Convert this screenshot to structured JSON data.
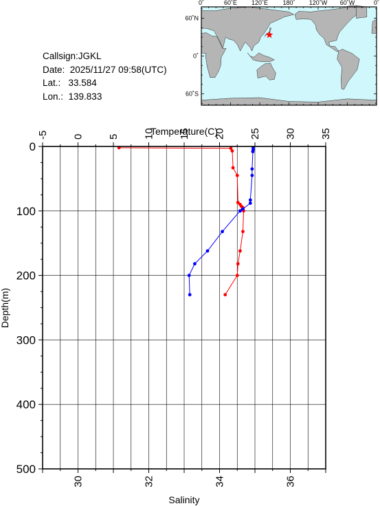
{
  "info": {
    "callsign": "Callsign:JGKL",
    "date": "Date:  2025/11/27 09:58(UTC)",
    "lat": "Lat.:   33.584",
    "lon": "Lon.:  139.833"
  },
  "map": {
    "lon_labels": [
      "0˚",
      "60˚E",
      "120˚E",
      "180˚",
      "120˚W",
      "60˚W",
      "0˚"
    ],
    "lat_labels": [
      "60˚N",
      "0˚",
      "60˚S"
    ],
    "station": {
      "lat": 33.584,
      "lon": 139.833
    },
    "ocean_color": "#d0f8fc",
    "land_color": "#b5b5b5",
    "marker_color": "#ff0000"
  },
  "chart_data": {
    "type": "line",
    "xlabel": "Temperature(C)",
    "x2label": "Salinity",
    "ylabel": "Depth(m)",
    "temp_range": [
      -5,
      35
    ],
    "temp_ticks": [
      "-5",
      "0",
      "5",
      "10",
      "15",
      "20",
      "25",
      "30",
      "35"
    ],
    "sal_range": [
      29,
      37
    ],
    "sal_ticks": [
      "30",
      "32",
      "34",
      "36"
    ],
    "depth_range": [
      0,
      500
    ],
    "depth_ticks": [
      "0",
      "100",
      "200",
      "300",
      "400",
      "500"
    ],
    "grid": true,
    "series": [
      {
        "color": "#ff0000",
        "axis": "temperature",
        "points": [
          [
            5.8,
            2
          ],
          [
            21.6,
            3
          ],
          [
            21.8,
            7
          ],
          [
            21.9,
            33
          ],
          [
            22.5,
            45
          ],
          [
            22.6,
            87
          ],
          [
            22.9,
            90
          ],
          [
            23.1,
            93
          ],
          [
            23.3,
            95
          ],
          [
            23.2,
            98
          ],
          [
            23.4,
            100
          ],
          [
            23.3,
            132
          ],
          [
            22.9,
            162
          ],
          [
            22.6,
            182
          ],
          [
            22.5,
            200
          ],
          [
            20.8,
            230
          ]
        ]
      },
      {
        "color": "#0000ff",
        "axis": "salinity",
        "points": [
          [
            34.95,
            2
          ],
          [
            34.95,
            5
          ],
          [
            34.94,
            8
          ],
          [
            34.92,
            35
          ],
          [
            34.92,
            45
          ],
          [
            34.87,
            83
          ],
          [
            34.87,
            88
          ],
          [
            34.66,
            97
          ],
          [
            34.58,
            100
          ],
          [
            34.58,
            100
          ],
          [
            34.08,
            132
          ],
          [
            33.66,
            162
          ],
          [
            33.3,
            182
          ],
          [
            33.14,
            200
          ],
          [
            33.16,
            230
          ]
        ]
      }
    ]
  }
}
